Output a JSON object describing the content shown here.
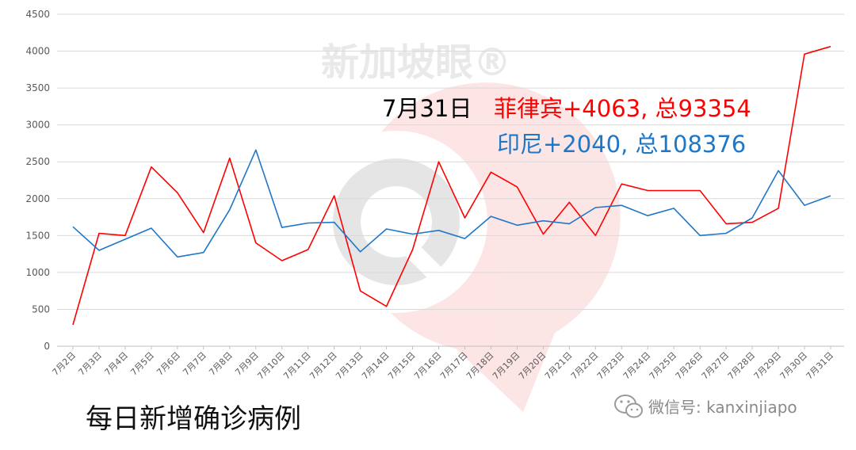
{
  "chart_data": {
    "type": "line",
    "categories": [
      "7月2日",
      "7月3日",
      "7月4日",
      "7月5日",
      "7月6日",
      "7月7日",
      "7月8日",
      "7月9日",
      "7月10日",
      "7月11日",
      "7月12日",
      "7月13日",
      "7月14日",
      "7月15日",
      "7月16日",
      "7月17日",
      "7月18日",
      "7月19日",
      "7月20日",
      "7月21日",
      "7月22日",
      "7月23日",
      "7月24日",
      "7月25日",
      "7月26日",
      "7月27日",
      "7月28日",
      "7月29日",
      "7月30日",
      "7月31日"
    ],
    "yticks": [
      "0",
      "500",
      "1000",
      "1500",
      "2000",
      "2500",
      "3000",
      "3500",
      "4000",
      "4500"
    ],
    "ylim": [
      0,
      4500
    ],
    "grid": true,
    "series": [
      {
        "key": "philippines",
        "color": "#ff0000",
        "values": [
          290,
          1530,
          1500,
          2430,
          2080,
          1540,
          2550,
          1400,
          1160,
          1310,
          2040,
          750,
          540,
          1310,
          2500,
          1740,
          2360,
          2160,
          1520,
          1950,
          1500,
          2200,
          2110,
          2110,
          2110,
          1660,
          1680,
          1870,
          3960,
          4063
        ]
      },
      {
        "key": "indonesia",
        "color": "#1f77c8",
        "values": [
          1620,
          1300,
          1450,
          1600,
          1210,
          1270,
          1850,
          2660,
          1610,
          1670,
          1680,
          1280,
          1590,
          1520,
          1570,
          1460,
          1760,
          1640,
          1700,
          1660,
          1880,
          1910,
          1770,
          1870,
          1500,
          1530,
          1740,
          2380,
          1910,
          2040
        ]
      }
    ],
    "annotations": {
      "date": "7月31日",
      "philippines": "菲律宾+4063, 总93354",
      "indonesia": "印尼+2040, 总108376",
      "date_color": "#000000",
      "philippines_color": "#ff0000",
      "indonesia_color": "#1f77c8"
    }
  },
  "caption": "每日新增确诊病例",
  "wechat": {
    "label": "微信号: kanxinjiapo",
    "icon": "wechat-icon"
  },
  "watermark": {
    "text": "新加坡眼®",
    "icon": "search-magnifier-logo"
  }
}
